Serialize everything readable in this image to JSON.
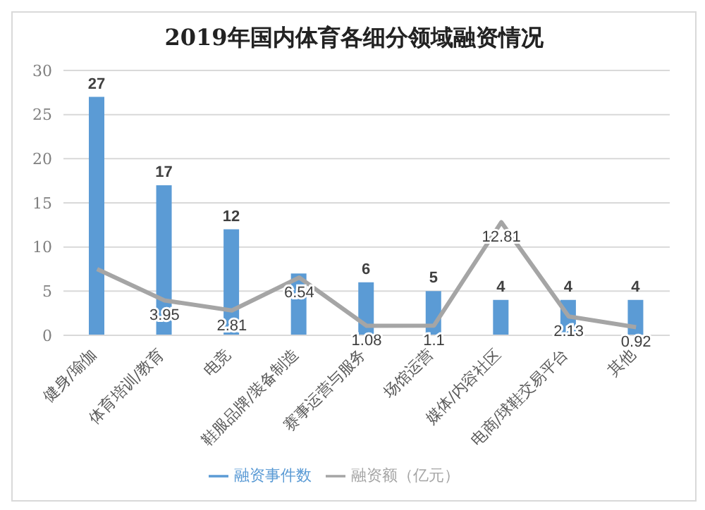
{
  "chart_data": {
    "type": "bar",
    "title": "2019年国内体育各细分领域融资情况",
    "categories": [
      "健身/瑜伽",
      "体育培训/教育",
      "电竞",
      "鞋服品牌/装备制造",
      "赛事运营与服务",
      "场馆运营",
      "媒体/内容社区",
      "电商/球鞋交易平台",
      "其他"
    ],
    "series": [
      {
        "name": "融资事件数",
        "color": "#5b9bd5",
        "values": [
          27,
          17,
          12,
          7,
          6,
          5,
          4,
          4,
          4
        ],
        "value_labels": [
          "27",
          "17",
          "12",
          null,
          "6",
          "5",
          "4",
          "4",
          "4"
        ]
      },
      {
        "name": "融资额（亿元）",
        "type": "line",
        "color": "#a5a5a5",
        "values": [
          7.5,
          3.95,
          2.81,
          6.54,
          1.08,
          1.1,
          12.81,
          2.13,
          0.92
        ],
        "value_labels": [
          null,
          "3.95",
          "2.81",
          "6.54",
          "1.08",
          "1.1",
          "12.81",
          "2.13",
          "0.92"
        ]
      }
    ],
    "ylim": [
      0,
      30
    ],
    "yticks": [
      0,
      5,
      10,
      15,
      20,
      25,
      30
    ],
    "grid": "y",
    "legend": "bottom",
    "marker": "none"
  }
}
